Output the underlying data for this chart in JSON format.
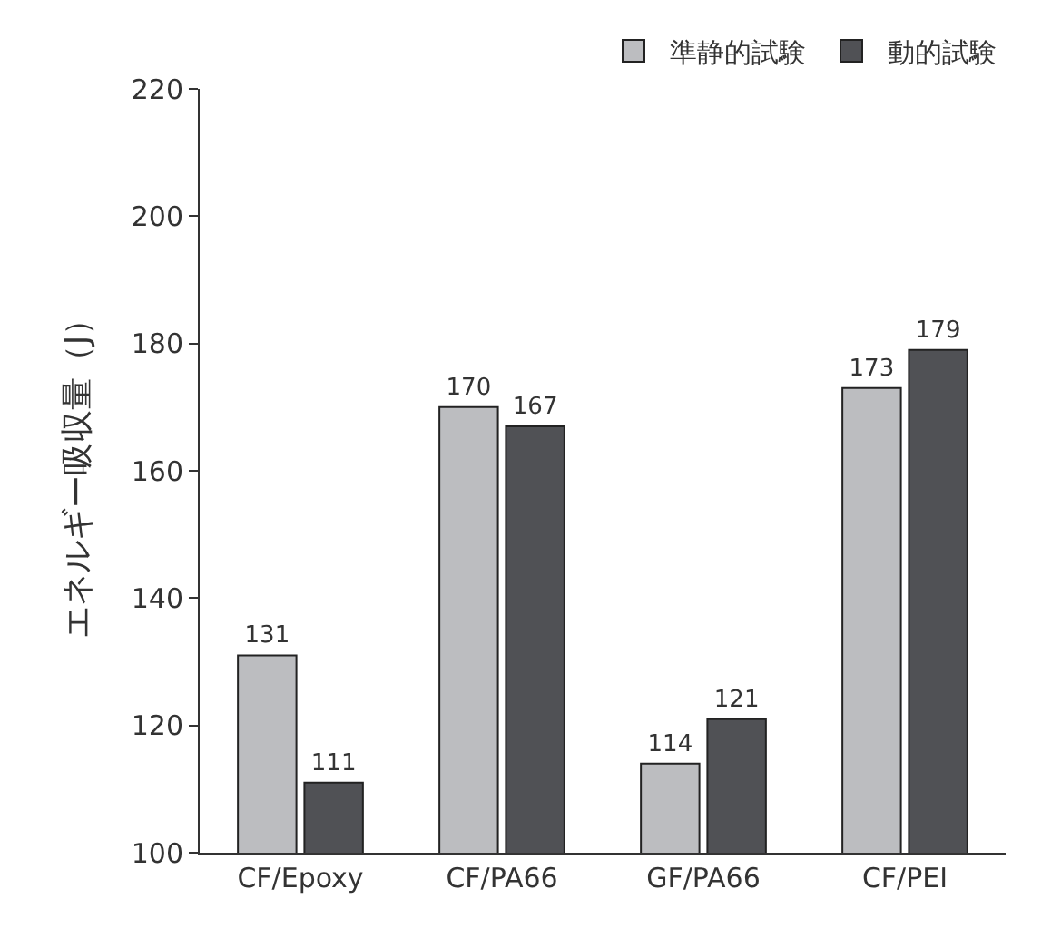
{
  "chart_data": {
    "type": "bar",
    "ylabel": "エネルギー吸収量（J）",
    "categories": [
      "CF/Epoxy",
      "CF/PA66",
      "GF/PA66",
      "CF/PEI"
    ],
    "series": [
      {
        "name": "準静的試験",
        "color": "#bcbdc0",
        "values": [
          131,
          170,
          114,
          173
        ]
      },
      {
        "name": "動的試験",
        "color": "#505155",
        "values": [
          111,
          167,
          121,
          179
        ]
      }
    ],
    "ylim": [
      100,
      220
    ],
    "yticks": [
      100,
      120,
      140,
      160,
      180,
      200,
      220
    ],
    "grid": false,
    "legend": "top right",
    "data_labels": true
  }
}
